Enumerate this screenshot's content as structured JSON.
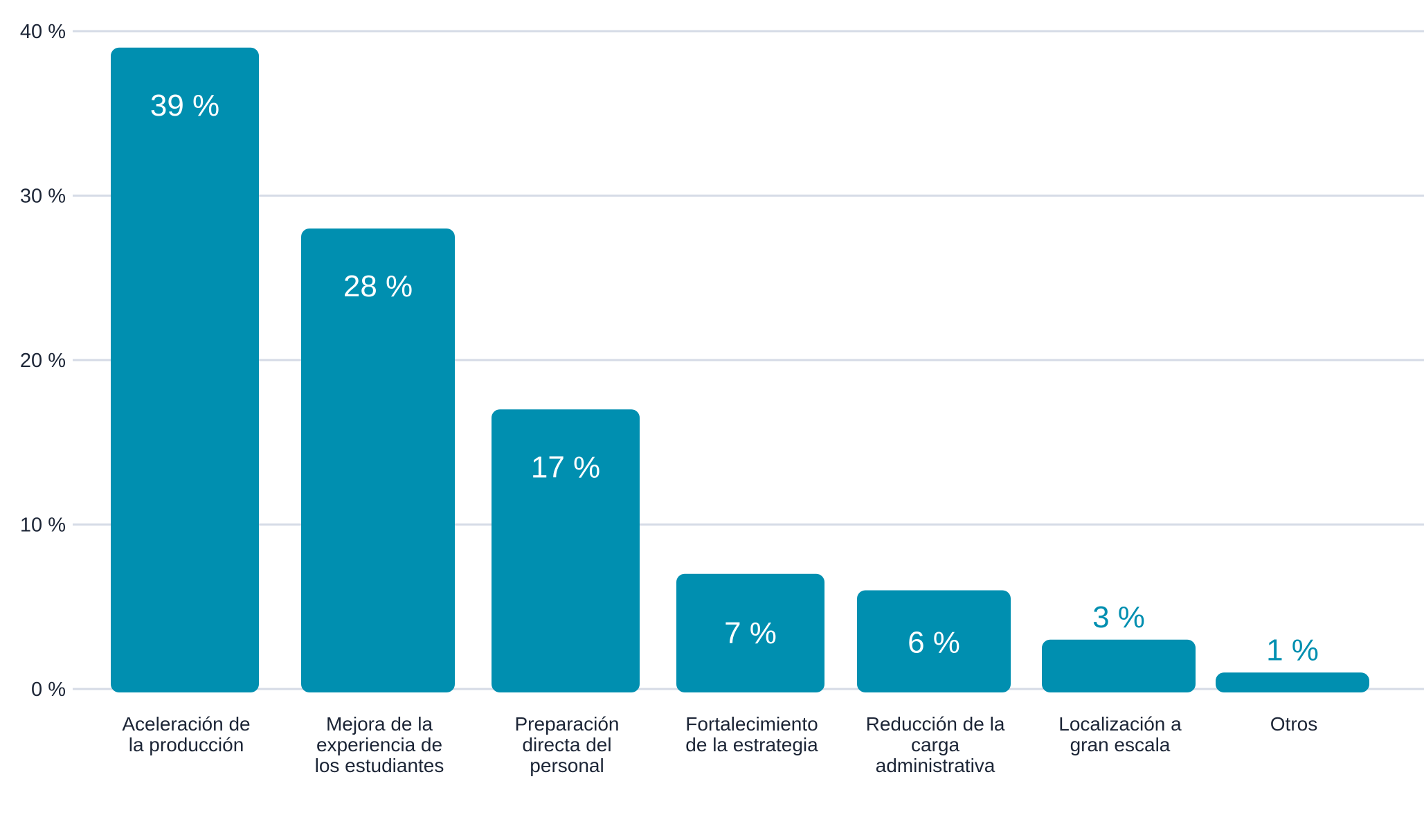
{
  "chart_data": {
    "type": "bar",
    "title": "",
    "xlabel": "",
    "ylabel": "",
    "ylim": [
      0,
      40
    ],
    "y_ticks": [
      0,
      10,
      20,
      30,
      40
    ],
    "y_tick_labels": [
      "0 %",
      "10 %",
      "20 %",
      "30 %",
      "40 %"
    ],
    "grid": true,
    "categories": [
      [
        "Aceleración de",
        "la producción"
      ],
      [
        "Mejora de la",
        "experiencia de",
        "los estudiantes"
      ],
      [
        "Preparación",
        "directa del",
        "personal"
      ],
      [
        "Fortalecimiento",
        "de la estrategia"
      ],
      [
        "Reducción de la",
        "carga",
        "administrativa"
      ],
      [
        "Localización a",
        "gran escala"
      ],
      [
        "Otros"
      ]
    ],
    "values": [
      39,
      28,
      17,
      7,
      6,
      3,
      1
    ],
    "value_labels": [
      "39 %",
      "28 %",
      "17 %",
      "7 %",
      "6 %",
      "3 %",
      "1 %"
    ],
    "colors": {
      "bar": "#008fb0",
      "label_inside": "#ffffff",
      "label_outside": "#008fb0",
      "grid": "#d5dbe6",
      "axis_text": "#1c2536"
    }
  }
}
